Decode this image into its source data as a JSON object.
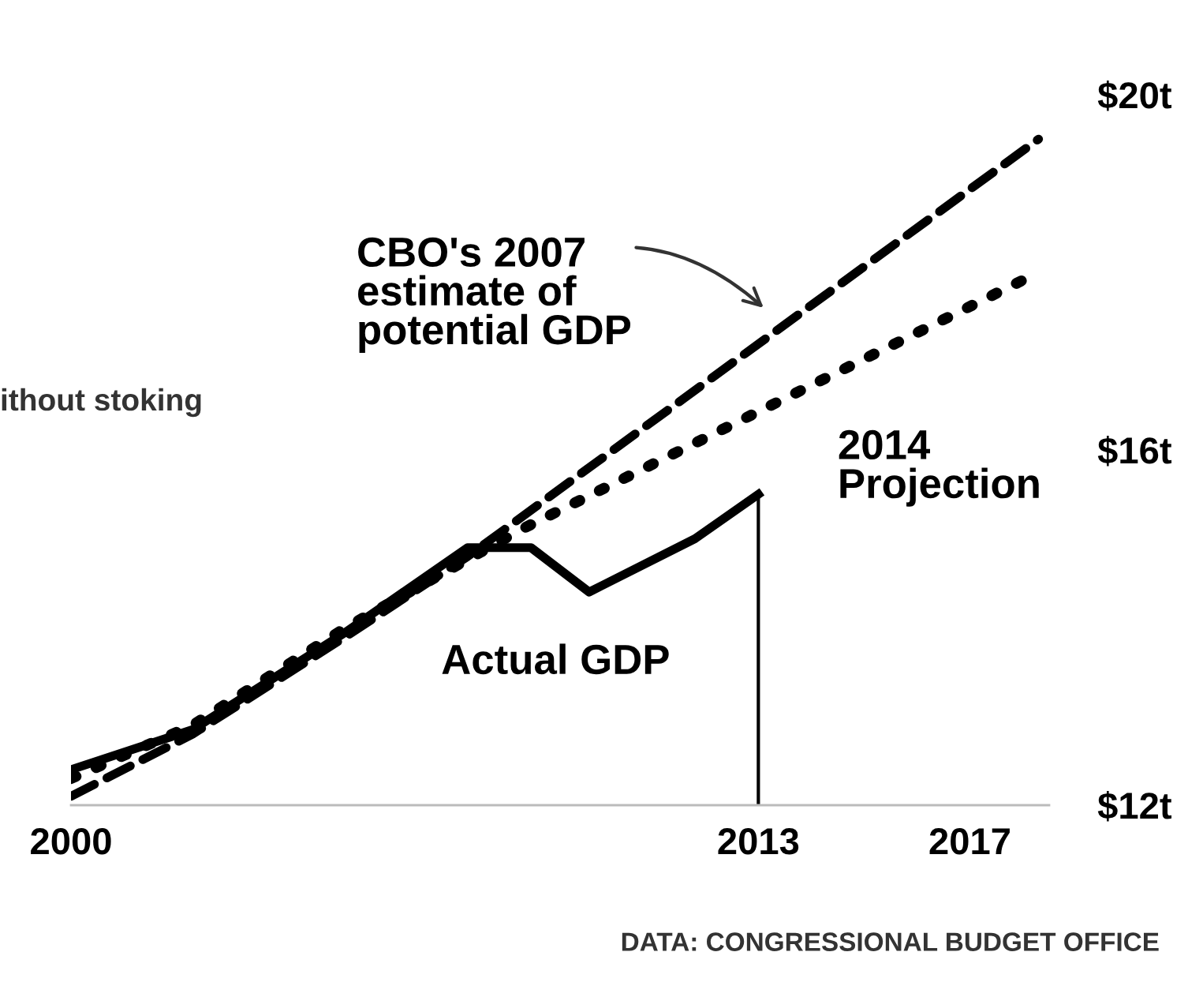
{
  "chart_data": {
    "type": "line",
    "x": [
      2000,
      2002.3,
      2005.2,
      2007.5,
      2008.7,
      2009.8,
      2011.8,
      2013
    ],
    "series": [
      {
        "name": "Actual GDP",
        "color": "#000000",
        "line_style": "solid",
        "values": [
          12.4,
          12.85,
          13.95,
          14.9,
          14.9,
          14.4,
          15.0,
          15.5
        ]
      },
      {
        "name": "CBO's 2007 estimate of potential GDP",
        "color": "#000000",
        "line_style": "dashed",
        "x": [
          2000,
          2002.3,
          2005.2,
          2007.5,
          2018.3
        ],
        "values": [
          12.1,
          12.8,
          13.9,
          14.8,
          19.5
        ]
      },
      {
        "name": "2014 Projection",
        "color": "#000000",
        "line_style": "dotted",
        "x": [
          2000,
          2002.3,
          2005.2,
          2008.5,
          2018.3
        ],
        "values": [
          12.3,
          12.9,
          14.0,
          15.1,
          18.0
        ]
      }
    ],
    "xlim": [
      2000,
      2018.5
    ],
    "ylim": [
      12,
      20
    ],
    "xticks": [
      2000,
      2013,
      2017
    ],
    "yticks": [
      {
        "value": 12,
        "label": "$12t"
      },
      {
        "value": 16,
        "label": "$16t"
      },
      {
        "value": 20,
        "label": "$20t"
      }
    ],
    "ref_lines": [
      {
        "axis": "x",
        "value": 2013,
        "color": "#000000"
      }
    ],
    "annotations": [
      "ithout stoking",
      "DATA: CONGRESSIONAL BUDGET OFFICE"
    ],
    "grid": false
  }
}
